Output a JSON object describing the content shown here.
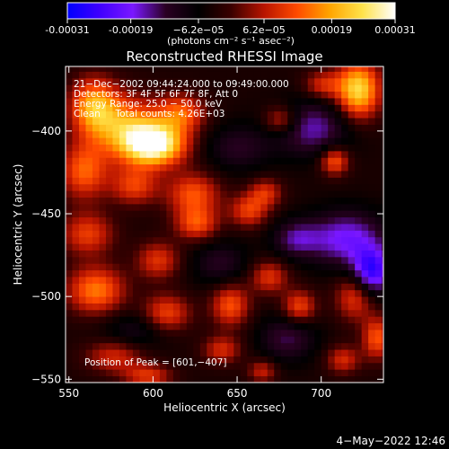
{
  "chart_data": {
    "type": "heatmap",
    "title": "Reconstructed RHESSI Image",
    "xlabel": "Heliocentric X (arcsec)",
    "ylabel": "Heliocentric Y (arcsec)",
    "xlim": [
      548,
      737
    ],
    "ylim": [
      -552,
      -361
    ],
    "x_ticks": [
      {
        "value": 550,
        "label": "550"
      },
      {
        "value": 600,
        "label": "600"
      },
      {
        "value": 650,
        "label": "650"
      },
      {
        "value": 700,
        "label": "700"
      }
    ],
    "y_ticks": [
      {
        "value": -400,
        "label": "−400"
      },
      {
        "value": -450,
        "label": "−450"
      },
      {
        "value": -500,
        "label": "−500"
      },
      {
        "value": -550,
        "label": "−550"
      }
    ],
    "colorbar": {
      "range": [
        -0.00031,
        0.00031
      ],
      "tick_values": [
        -0.00031,
        -0.00019,
        -6.2e-05,
        6.2e-05,
        0.00019,
        0.00031
      ],
      "tick_labels": [
        "-0.00031",
        "-0.00019",
        "−6.2e−05",
        "6.2e−05",
        "0.00019",
        "0.00031"
      ],
      "unit_label": "(photons cm⁻² s⁻¹ asec⁻²)",
      "colors": [
        "#0000ff",
        "#4000ff",
        "#7a18ff",
        "#2a0022",
        "#000000",
        "#3a0000",
        "#b81400",
        "#ff4a00",
        "#ffa400",
        "#ffe24a",
        "#ffffff"
      ]
    },
    "annotations": [
      "21−Dec−2002 09:44:24.000 to 09:49:00.000",
      "Detectors: 3F 4F 5F 6F 7F 8F, Att 0",
      "Energy Range: 25.0 − 50.0 keV",
      "Clean     Total counts: 4.26E+03"
    ],
    "peak_label": "Position of Peak = [601,−407]",
    "peak": [
      601,
      -407
    ],
    "blobs": [
      {
        "x": 601,
        "y": -408,
        "sx": 13,
        "sy": 9,
        "v": 0.00033
      },
      {
        "x": 585,
        "y": -398,
        "sx": 15,
        "sy": 13,
        "v": 0.0002
      },
      {
        "x": 565,
        "y": -385,
        "sx": 10,
        "sy": 12,
        "v": 0.00022
      },
      {
        "x": 617,
        "y": -389,
        "sx": 10,
        "sy": 8,
        "v": 0.00016
      },
      {
        "x": 722,
        "y": -375,
        "sx": 9,
        "sy": 12,
        "v": 0.00028
      },
      {
        "x": 701,
        "y": -372,
        "sx": 8,
        "sy": 6,
        "v": 0.00012
      },
      {
        "x": 676,
        "y": -393,
        "sx": 7,
        "sy": 6,
        "v": 0.00013
      },
      {
        "x": 559,
        "y": -424,
        "sx": 10,
        "sy": 12,
        "v": 0.00017
      },
      {
        "x": 589,
        "y": -433,
        "sx": 10,
        "sy": 8,
        "v": 0.00014
      },
      {
        "x": 624,
        "y": -438,
        "sx": 11,
        "sy": 9,
        "v": 0.00016
      },
      {
        "x": 626,
        "y": -456,
        "sx": 9,
        "sy": 7,
        "v": 0.00015
      },
      {
        "x": 657,
        "y": -448,
        "sx": 8,
        "sy": 7,
        "v": 0.00014
      },
      {
        "x": 667,
        "y": -437,
        "sx": 7,
        "sy": 6,
        "v": 0.00012
      },
      {
        "x": 708,
        "y": -418,
        "sx": 6,
        "sy": 6,
        "v": 0.00017
      },
      {
        "x": 561,
        "y": -462,
        "sx": 11,
        "sy": 9,
        "v": 0.00014
      },
      {
        "x": 603,
        "y": -478,
        "sx": 9,
        "sy": 8,
        "v": 0.00013
      },
      {
        "x": 566,
        "y": -496,
        "sx": 12,
        "sy": 10,
        "v": 0.00019
      },
      {
        "x": 608,
        "y": -510,
        "sx": 10,
        "sy": 8,
        "v": 0.00015
      },
      {
        "x": 646,
        "y": -505,
        "sx": 8,
        "sy": 9,
        "v": 0.00016
      },
      {
        "x": 669,
        "y": -488,
        "sx": 8,
        "sy": 7,
        "v": 0.00013
      },
      {
        "x": 687,
        "y": -506,
        "sx": 7,
        "sy": 7,
        "v": 0.00015
      },
      {
        "x": 720,
        "y": -500,
        "sx": 8,
        "sy": 10,
        "v": 0.00014
      },
      {
        "x": 733,
        "y": -525,
        "sx": 6,
        "sy": 9,
        "v": 0.00016
      },
      {
        "x": 577,
        "y": -536,
        "sx": 12,
        "sy": 7,
        "v": 0.00012
      },
      {
        "x": 641,
        "y": -532,
        "sx": 8,
        "sy": 6,
        "v": 0.00012
      },
      {
        "x": 713,
        "y": -538,
        "sx": 7,
        "sy": 6,
        "v": 0.00012
      },
      {
        "x": 597,
        "y": -548,
        "sx": 10,
        "sy": 5,
        "v": 0.00013
      },
      {
        "x": 665,
        "y": -545,
        "sx": 6,
        "sy": 5,
        "v": 0.00011
      },
      {
        "x": 695,
        "y": -398,
        "sx": 16,
        "sy": 12,
        "v": -0.00013
      },
      {
        "x": 715,
        "y": -465,
        "sx": 16,
        "sy": 12,
        "v": -0.00016
      },
      {
        "x": 730,
        "y": -485,
        "sx": 8,
        "sy": 10,
        "v": -0.00022
      },
      {
        "x": 685,
        "y": -465,
        "sx": 10,
        "sy": 8,
        "v": -0.00011
      },
      {
        "x": 650,
        "y": -410,
        "sx": 14,
        "sy": 10,
        "v": -8e-05
      },
      {
        "x": 640,
        "y": -480,
        "sx": 12,
        "sy": 10,
        "v": -8e-05
      },
      {
        "x": 590,
        "y": -520,
        "sx": 14,
        "sy": 8,
        "v": -7e-05
      },
      {
        "x": 680,
        "y": -525,
        "sx": 12,
        "sy": 10,
        "v": -0.0001
      }
    ]
  },
  "footer": {
    "timestamp": "4−May−2022 12:46"
  }
}
